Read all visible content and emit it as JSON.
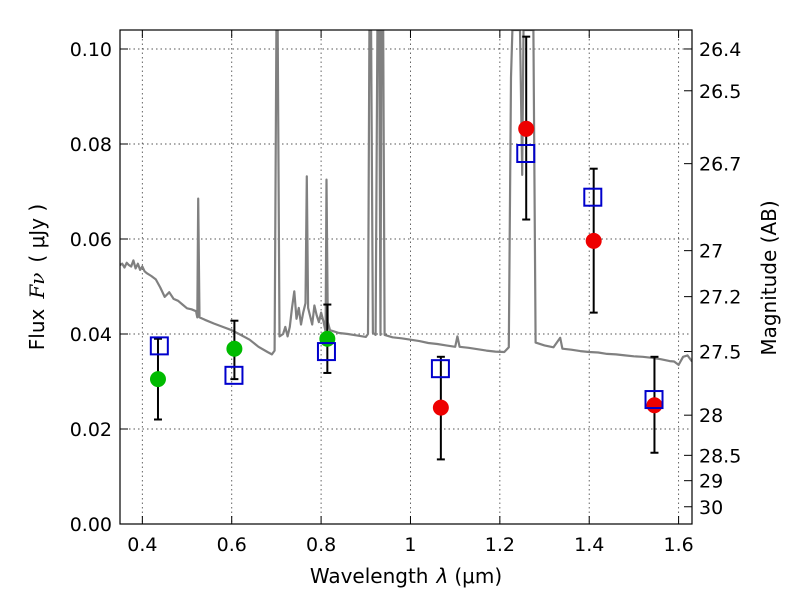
{
  "chart_data": {
    "type": "scatter",
    "xlabel_text": "Wavelength",
    "xlabel_symbol": "λ",
    "xlabel_unit": "(μm)",
    "ylabel_text": "Flux",
    "ylabel_symbol": "Fν",
    "ylabel_unit": "( μJy )",
    "y2label": "Magnitude (AB)",
    "xlim": [
      0.35,
      1.63
    ],
    "ylim": [
      0.0,
      0.104
    ],
    "x_ticks": [
      {
        "value": 0.4,
        "label": "0.4"
      },
      {
        "value": 0.6,
        "label": "0.6"
      },
      {
        "value": 0.8,
        "label": "0.8"
      },
      {
        "value": 1.0,
        "label": "1"
      },
      {
        "value": 1.2,
        "label": "1.2"
      },
      {
        "value": 1.4,
        "label": "1.4"
      },
      {
        "value": 1.6,
        "label": "1.6"
      }
    ],
    "y_ticks": [
      {
        "value": 0.0,
        "label": "0.00"
      },
      {
        "value": 0.02,
        "label": "0.02"
      },
      {
        "value": 0.04,
        "label": "0.04"
      },
      {
        "value": 0.06,
        "label": "0.06"
      },
      {
        "value": 0.08,
        "label": "0.08"
      },
      {
        "value": 0.1,
        "label": "0.10"
      }
    ],
    "y2_ticks": [
      {
        "mag": 26.4,
        "label": "26.4"
      },
      {
        "mag": 26.5,
        "label": "26.5"
      },
      {
        "mag": 26.7,
        "label": "26.7"
      },
      {
        "mag": 27.0,
        "label": "27"
      },
      {
        "mag": 27.2,
        "label": "27.2"
      },
      {
        "mag": 27.5,
        "label": "27.5"
      },
      {
        "mag": 28.0,
        "label": "28"
      },
      {
        "mag": 28.5,
        "label": "28.5"
      },
      {
        "mag": 29.0,
        "label": "29"
      },
      {
        "mag": 30.0,
        "label": "30"
      }
    ],
    "grid": true,
    "series": [
      {
        "name": "observed (green)",
        "color": "#00bb00",
        "marker": "circle",
        "points": [
          {
            "x": 0.435,
            "y": 0.0305,
            "yerr_low": 0.022,
            "yerr_high": 0.039
          },
          {
            "x": 0.606,
            "y": 0.0369,
            "yerr_low": 0.0305,
            "yerr_high": 0.0428
          },
          {
            "x": 0.814,
            "y": 0.039,
            "yerr_low": 0.0318,
            "yerr_high": 0.0462
          }
        ]
      },
      {
        "name": "observed (red)",
        "color": "#ee0000",
        "marker": "circle",
        "points": [
          {
            "x": 1.068,
            "y": 0.0245,
            "yerr_low": 0.0136,
            "yerr_high": 0.0352
          },
          {
            "x": 1.259,
            "y": 0.0832,
            "yerr_low": 0.0641,
            "yerr_high": 0.1026
          },
          {
            "x": 1.41,
            "y": 0.0596,
            "yerr_low": 0.0445,
            "yerr_high": 0.0748
          },
          {
            "x": 1.546,
            "y": 0.025,
            "yerr_low": 0.015,
            "yerr_high": 0.0352
          }
        ]
      },
      {
        "name": "model (blue squares)",
        "color": "#0000cc",
        "marker": "square",
        "points": [
          {
            "x": 0.438,
            "y": 0.0375
          },
          {
            "x": 0.605,
            "y": 0.0313
          },
          {
            "x": 0.812,
            "y": 0.0363
          },
          {
            "x": 1.067,
            "y": 0.0327
          },
          {
            "x": 1.258,
            "y": 0.078
          },
          {
            "x": 1.408,
            "y": 0.0688
          },
          {
            "x": 1.545,
            "y": 0.0262
          }
        ]
      }
    ],
    "spectrum": {
      "name": "template spectrum",
      "color": "#808080",
      "points": [
        [
          0.35,
          0.0545
        ],
        [
          0.355,
          0.0548
        ],
        [
          0.36,
          0.054
        ],
        [
          0.365,
          0.055
        ],
        [
          0.37,
          0.0545
        ],
        [
          0.375,
          0.0542
        ],
        [
          0.38,
          0.0555
        ],
        [
          0.385,
          0.0538
        ],
        [
          0.39,
          0.0548
        ],
        [
          0.395,
          0.0535
        ],
        [
          0.4,
          0.0542
        ],
        [
          0.405,
          0.0532
        ],
        [
          0.41,
          0.0528
        ],
        [
          0.42,
          0.0522
        ],
        [
          0.43,
          0.0515
        ],
        [
          0.44,
          0.0498
        ],
        [
          0.45,
          0.0478
        ],
        [
          0.46,
          0.0488
        ],
        [
          0.47,
          0.0474
        ],
        [
          0.48,
          0.047
        ],
        [
          0.49,
          0.0462
        ],
        [
          0.5,
          0.0454
        ],
        [
          0.51,
          0.0452
        ],
        [
          0.52,
          0.0448
        ],
        [
          0.523,
          0.0435
        ],
        [
          0.525,
          0.0685
        ],
        [
          0.528,
          0.0435
        ],
        [
          0.54,
          0.043
        ],
        [
          0.56,
          0.0422
        ],
        [
          0.58,
          0.0415
        ],
        [
          0.6,
          0.0408
        ],
        [
          0.62,
          0.0398
        ],
        [
          0.64,
          0.0388
        ],
        [
          0.66,
          0.0373
        ],
        [
          0.68,
          0.0362
        ],
        [
          0.69,
          0.0357
        ],
        [
          0.696,
          0.0365
        ],
        [
          0.7,
          0.104
        ],
        [
          0.703,
          0.104
        ],
        [
          0.707,
          0.0395
        ],
        [
          0.715,
          0.04
        ],
        [
          0.72,
          0.0415
        ],
        [
          0.725,
          0.0395
        ],
        [
          0.73,
          0.0415
        ],
        [
          0.735,
          0.0455
        ],
        [
          0.74,
          0.049
        ],
        [
          0.745,
          0.0432
        ],
        [
          0.75,
          0.0455
        ],
        [
          0.755,
          0.042
        ],
        [
          0.76,
          0.0445
        ],
        [
          0.765,
          0.0465
        ],
        [
          0.768,
          0.0732
        ],
        [
          0.771,
          0.0455
        ],
        [
          0.78,
          0.042
        ],
        [
          0.785,
          0.046
        ],
        [
          0.79,
          0.044
        ],
        [
          0.795,
          0.0425
        ],
        [
          0.8,
          0.0445
        ],
        [
          0.805,
          0.0428
        ],
        [
          0.81,
          0.0405
        ],
        [
          0.812,
          0.0725
        ],
        [
          0.815,
          0.0425
        ],
        [
          0.82,
          0.0408
        ],
        [
          0.84,
          0.0402
        ],
        [
          0.86,
          0.04
        ],
        [
          0.88,
          0.0397
        ],
        [
          0.9,
          0.0394
        ],
        [
          0.905,
          0.04
        ],
        [
          0.908,
          0.104
        ],
        [
          0.912,
          0.104
        ],
        [
          0.916,
          0.0402
        ],
        [
          0.922,
          0.0398
        ],
        [
          0.926,
          0.104
        ],
        [
          0.93,
          0.104
        ],
        [
          0.933,
          0.0398
        ],
        [
          0.935,
          0.104
        ],
        [
          0.939,
          0.104
        ],
        [
          0.942,
          0.0398
        ],
        [
          0.96,
          0.0393
        ],
        [
          0.98,
          0.0391
        ],
        [
          1.0,
          0.0388
        ],
        [
          1.02,
          0.0385
        ],
        [
          1.04,
          0.0381
        ],
        [
          1.06,
          0.0379
        ],
        [
          1.08,
          0.0376
        ],
        [
          1.1,
          0.0373
        ],
        [
          1.105,
          0.0395
        ],
        [
          1.11,
          0.0373
        ],
        [
          1.13,
          0.0371
        ],
        [
          1.15,
          0.0368
        ],
        [
          1.17,
          0.0365
        ],
        [
          1.19,
          0.0363
        ],
        [
          1.21,
          0.0362
        ],
        [
          1.22,
          0.0372
        ],
        [
          1.225,
          0.094
        ],
        [
          1.228,
          0.104
        ],
        [
          1.245,
          0.104
        ],
        [
          1.25,
          0.0735
        ],
        [
          1.253,
          0.104
        ],
        [
          1.275,
          0.104
        ],
        [
          1.28,
          0.0382
        ],
        [
          1.3,
          0.0376
        ],
        [
          1.32,
          0.0372
        ],
        [
          1.335,
          0.0392
        ],
        [
          1.34,
          0.0369
        ],
        [
          1.36,
          0.0367
        ],
        [
          1.38,
          0.0364
        ],
        [
          1.4,
          0.0362
        ],
        [
          1.42,
          0.0361
        ],
        [
          1.44,
          0.0358
        ],
        [
          1.46,
          0.0357
        ],
        [
          1.48,
          0.0355
        ],
        [
          1.5,
          0.0353
        ],
        [
          1.52,
          0.0352
        ],
        [
          1.54,
          0.035
        ],
        [
          1.56,
          0.0347
        ],
        [
          1.58,
          0.0343
        ],
        [
          1.59,
          0.0342
        ],
        [
          1.6,
          0.0335
        ],
        [
          1.61,
          0.0352
        ],
        [
          1.62,
          0.0355
        ],
        [
          1.63,
          0.0342
        ]
      ]
    }
  }
}
